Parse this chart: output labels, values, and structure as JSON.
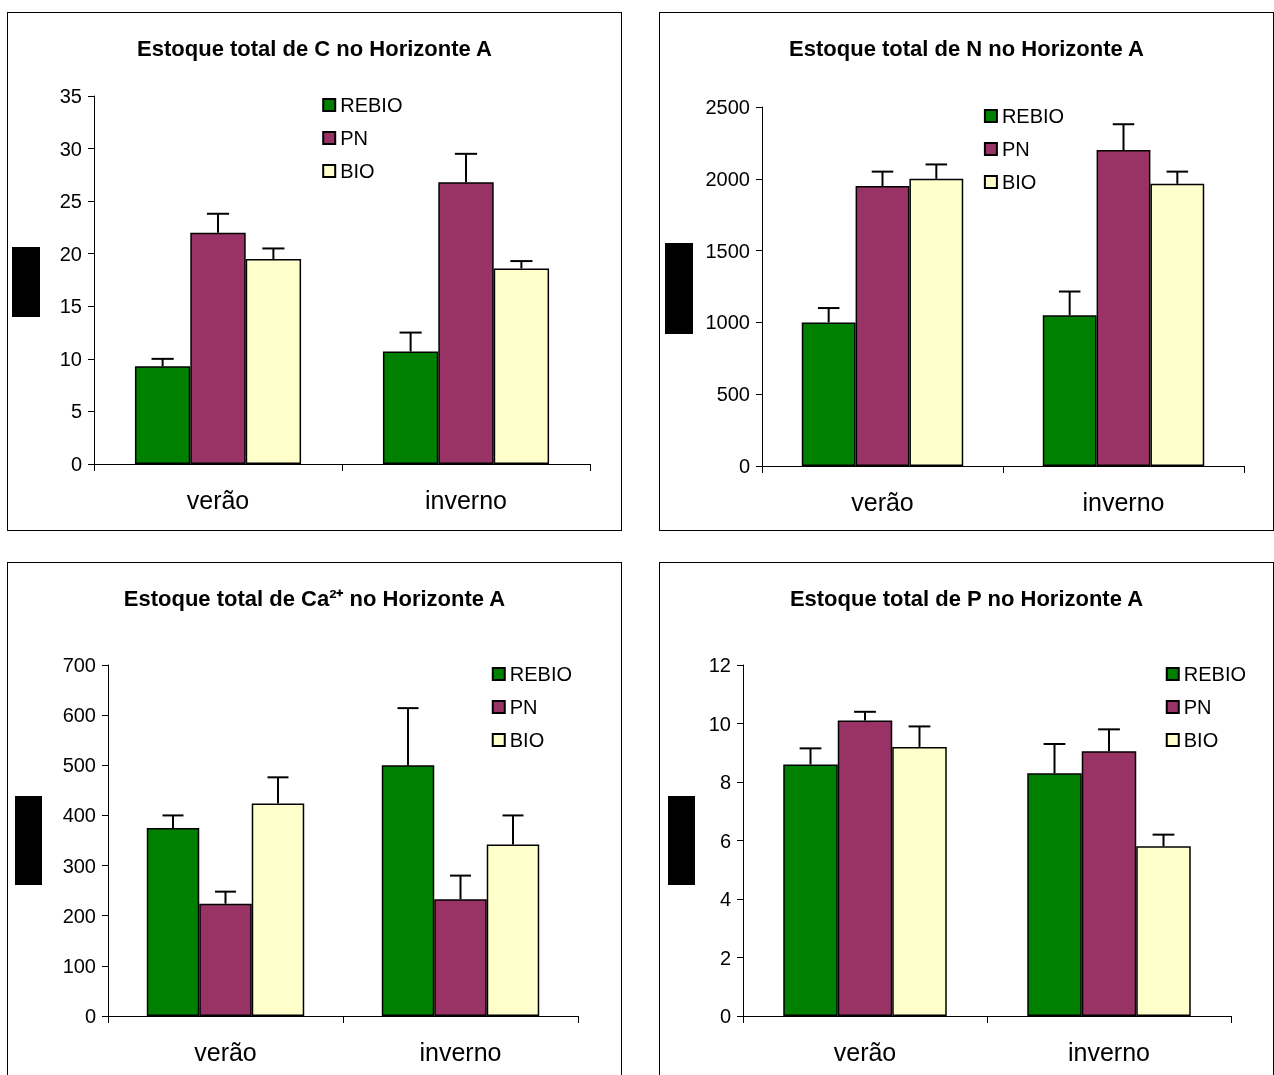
{
  "chart_data": [
    {
      "type": "bar",
      "title": "Estoque total de C no Horizonte A",
      "categories": [
        "verão",
        "inverno"
      ],
      "series": [
        {
          "name": "REBIO",
          "color": "#008000",
          "values": [
            9.3,
            10.7
          ],
          "errors": [
            [
              9.3,
              10.0
            ],
            [
              10.7,
              12.5
            ]
          ]
        },
        {
          "name": "PN",
          "color": "#993366",
          "values": [
            22.0,
            26.8
          ],
          "errors": [
            [
              22.0,
              23.8
            ],
            [
              26.8,
              29.5
            ]
          ]
        },
        {
          "name": "BIO",
          "color": "#ffffcc",
          "values": [
            19.5,
            18.6
          ],
          "errors": [
            [
              19.5,
              20.5
            ],
            [
              18.6,
              19.3
            ]
          ]
        }
      ],
      "ylim": [
        0,
        35
      ],
      "yticks": [
        0,
        5,
        10,
        15,
        20,
        25,
        30,
        35
      ],
      "legend": "top"
    },
    {
      "type": "bar",
      "title": "Estoque total de N no Horizonte A",
      "categories": [
        "verão",
        "inverno"
      ],
      "series": [
        {
          "name": "REBIO",
          "color": "#008000",
          "values": [
            1000,
            1050
          ],
          "errors": [
            [
              1000,
              1100
            ],
            [
              1050,
              1215
            ]
          ]
        },
        {
          "name": "PN",
          "color": "#993366",
          "values": [
            1950,
            2200
          ],
          "errors": [
            [
              1950,
              2050
            ],
            [
              2200,
              2380
            ]
          ]
        },
        {
          "name": "BIO",
          "color": "#ffffcc",
          "values": [
            2000,
            1965
          ],
          "errors": [
            [
              2000,
              2100
            ],
            [
              1965,
              2050
            ]
          ]
        }
      ],
      "ylim": [
        0,
        2500
      ],
      "yticks": [
        0,
        500,
        1000,
        1500,
        2000,
        2500
      ],
      "legend": "top"
    },
    {
      "type": "bar",
      "title": "Estoque total de Ca²⁺ no Horizonte A",
      "categories": [
        "verão",
        "inverno"
      ],
      "series": [
        {
          "name": "REBIO",
          "color": "#008000",
          "values": [
            375,
            500
          ],
          "errors": [
            [
              375,
              400
            ],
            [
              500,
              614
            ]
          ]
        },
        {
          "name": "PN",
          "color": "#993366",
          "values": [
            224,
            233
          ],
          "errors": [
            [
              224,
              248
            ],
            [
              233,
              280
            ]
          ]
        },
        {
          "name": "BIO",
          "color": "#ffffcc",
          "values": [
            424,
            342
          ],
          "errors": [
            [
              424,
              476
            ],
            [
              342,
              400
            ]
          ]
        }
      ],
      "ylim": [
        0,
        700
      ],
      "yticks": [
        0,
        100,
        200,
        300,
        400,
        500,
        600,
        700
      ],
      "legend": "top right"
    },
    {
      "type": "bar",
      "title": "Estoque total de P no Horizonte A",
      "categories": [
        "verão",
        "inverno"
      ],
      "series": [
        {
          "name": "REBIO",
          "color": "#008000",
          "values": [
            8.6,
            8.3
          ],
          "errors": [
            [
              8.6,
              9.15
            ],
            [
              8.3,
              9.3
            ]
          ]
        },
        {
          "name": "PN",
          "color": "#993366",
          "values": [
            10.1,
            9.05
          ],
          "errors": [
            [
              10.1,
              10.4
            ],
            [
              9.05,
              9.8
            ]
          ]
        },
        {
          "name": "BIO",
          "color": "#ffffcc",
          "values": [
            9.2,
            5.8
          ],
          "errors": [
            [
              9.2,
              9.9
            ],
            [
              5.8,
              6.2
            ]
          ]
        }
      ],
      "ylim": [
        0,
        12
      ],
      "yticks": [
        0,
        2,
        4,
        6,
        8,
        10,
        12
      ],
      "legend": "top right"
    }
  ]
}
